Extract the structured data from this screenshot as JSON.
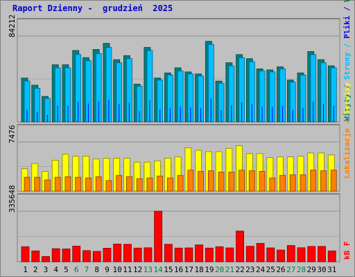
{
  "title": "Raport Dzienny -  grudzień  2025",
  "legend_visits": [
    "Wizyty",
    "Strony",
    "Pliki",
    "Wywołania"
  ],
  "legend_hosts": [
    "Lokalizacje",
    "Serwisy"
  ],
  "legend_kb": "kB F",
  "colors": {
    "visits": "#008040",
    "pages": "#00c0ff",
    "files": "#0000ff",
    "hits": "#008080",
    "sites": "#ff8000",
    "hosts": "#ffff00",
    "kbytes": "#ff0000",
    "title": "#0000c8",
    "bg": "#c0c0c0",
    "plot": "#c0c0c0"
  },
  "chart_data": [
    {
      "type": "bar",
      "title": "",
      "ylabel": "",
      "ymax_label": "84212",
      "ylim": [
        0,
        84212
      ],
      "categories": [
        "1",
        "2",
        "3",
        "4",
        "5",
        "6",
        "7",
        "8",
        "9",
        "10",
        "11",
        "12",
        "13",
        "14",
        "15",
        "16",
        "17",
        "18",
        "19",
        "20",
        "21",
        "22",
        "23",
        "24",
        "25",
        "26",
        "27",
        "28",
        "29",
        "30",
        "31"
      ],
      "series": [
        {
          "name": "Wywołania",
          "values": [
            43000,
            36000,
            25000,
            56000,
            56000,
            70000,
            63000,
            71000,
            77000,
            61000,
            65000,
            37000,
            73000,
            43000,
            48000,
            53000,
            49000,
            47000,
            79000,
            40000,
            58000,
            66000,
            62000,
            52000,
            51000,
            54000,
            41000,
            48000,
            69000,
            61000,
            55000
          ]
        },
        {
          "name": "Pliki",
          "values": [
            0,
            0,
            0,
            0,
            0,
            0,
            0,
            0,
            0,
            0,
            0,
            0,
            0,
            0,
            0,
            0,
            0,
            0,
            0,
            0,
            0,
            0,
            0,
            0,
            0,
            0,
            0,
            0,
            0,
            0,
            0
          ]
        },
        {
          "name": "Strony",
          "values": [
            0,
            0,
            0,
            0,
            0,
            0,
            0,
            0,
            0,
            0,
            0,
            0,
            0,
            0,
            0,
            0,
            0,
            0,
            0,
            0,
            0,
            0,
            0,
            0,
            0,
            0,
            0,
            0,
            0,
            0,
            0
          ]
        },
        {
          "name": "Wizyty",
          "values": [
            40000,
            33000,
            23000,
            53000,
            53000,
            66000,
            60000,
            67000,
            73000,
            58000,
            62000,
            35000,
            70000,
            41000,
            46000,
            50000,
            47000,
            45000,
            76000,
            38000,
            55000,
            63000,
            59000,
            50000,
            49000,
            52000,
            39000,
            46000,
            66000,
            58000,
            53000
          ]
        }
      ]
    },
    {
      "type": "bar",
      "title": "",
      "ymax_label": "7476",
      "ylim": [
        0,
        7476
      ],
      "categories": [
        "1",
        "2",
        "3",
        "4",
        "5",
        "6",
        "7",
        "8",
        "9",
        "10",
        "11",
        "12",
        "13",
        "14",
        "15",
        "16",
        "17",
        "18",
        "19",
        "20",
        "21",
        "22",
        "23",
        "24",
        "25",
        "26",
        "27",
        "28",
        "29",
        "30",
        "31"
      ],
      "series": [
        {
          "name": "Serwisy",
          "values": [
            3400,
            4200,
            3000,
            4700,
            5600,
            5300,
            5300,
            4900,
            5000,
            5000,
            5000,
            4400,
            4400,
            4600,
            5000,
            5200,
            6600,
            6200,
            6000,
            6000,
            6500,
            6900,
            5700,
            5700,
            5100,
            5200,
            5200,
            5300,
            5800,
            5800,
            5500
          ]
        },
        {
          "name": "Lokalizacje",
          "values": [
            2100,
            2100,
            1700,
            2100,
            2200,
            2100,
            2000,
            2200,
            1600,
            2400,
            2200,
            1900,
            2000,
            2300,
            2000,
            2400,
            3200,
            3000,
            3100,
            2900,
            2900,
            3200,
            3100,
            3000,
            2000,
            2400,
            2500,
            2500,
            3200,
            3100,
            3200
          ]
        }
      ]
    },
    {
      "type": "bar",
      "title": "",
      "ymax_label": "335648",
      "ylim": [
        0,
        335648
      ],
      "categories": [
        "1",
        "2",
        "3",
        "4",
        "5",
        "6",
        "7",
        "8",
        "9",
        "10",
        "11",
        "12",
        "13",
        "14",
        "15",
        "16",
        "17",
        "18",
        "19",
        "20",
        "21",
        "22",
        "23",
        "24",
        "25",
        "26",
        "27",
        "28",
        "29",
        "30",
        "31"
      ],
      "series": [
        {
          "name": "kB F",
          "values": [
            100000,
            72000,
            35000,
            87000,
            85000,
            104000,
            74000,
            69000,
            90000,
            118000,
            116000,
            91000,
            93000,
            336000,
            116000,
            91000,
            92000,
            112000,
            91000,
            100000,
            92000,
            204000,
            103000,
            122000,
            92000,
            78000,
            108000,
            93000,
            102000,
            102000,
            72000
          ]
        }
      ]
    }
  ]
}
